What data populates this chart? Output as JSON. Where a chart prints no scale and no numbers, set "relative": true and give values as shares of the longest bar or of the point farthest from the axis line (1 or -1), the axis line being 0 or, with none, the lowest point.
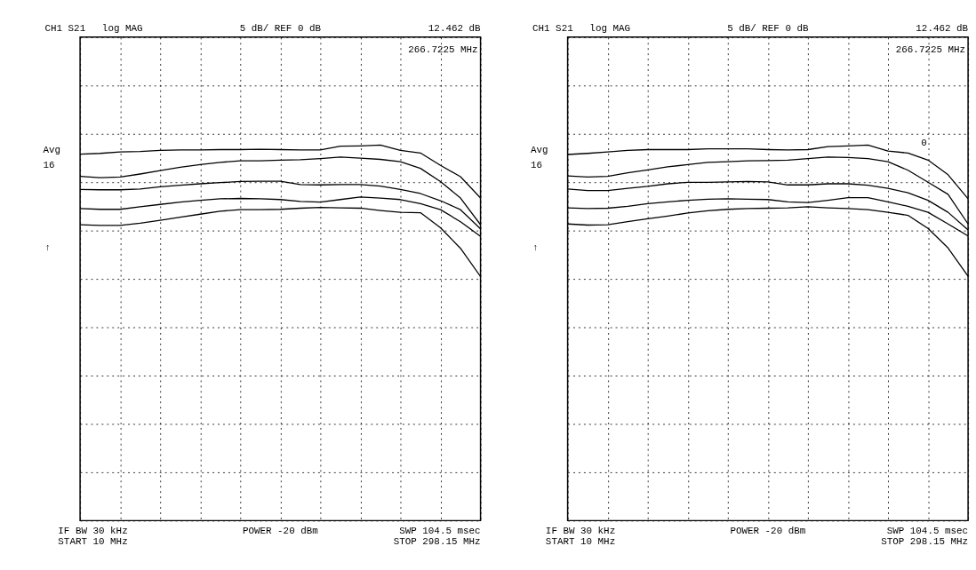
{
  "chart_data": [
    {
      "type": "line",
      "relative": true,
      "grid": true,
      "legend": false,
      "tick_labels": false,
      "line_style": "solid",
      "marker": "none",
      "categories": [
        null,
        null,
        null,
        null,
        null,
        null,
        null,
        null,
        null,
        null,
        null,
        null,
        null,
        null,
        null,
        null,
        null,
        null,
        null,
        null,
        null
      ],
      "series": [
        {
          "color": "#000000",
          "values": [
            0.976,
            0.978,
            0.982,
            0.983,
            0.986,
            0.987,
            0.987,
            0.988,
            0.988,
            0.989,
            0.988,
            0.987,
            0.987,
            0.997,
            0.998,
            1,
            0.986,
            0.979,
            0.946,
            0.916,
            0.859
          ]
        },
        {
          "color": "#000000",
          "values": [
            0.917,
            0.913,
            0.915,
            0.923,
            0.932,
            0.941,
            0.948,
            0.954,
            0.958,
            0.958,
            0.96,
            0.961,
            0.964,
            0.968,
            0.965,
            0.962,
            0.956,
            0.938,
            0.903,
            0.859,
            0.788
          ]
        },
        {
          "color": "#000000",
          "values": [
            0.882,
            0.881,
            0.881,
            0.883,
            0.889,
            0.893,
            0.897,
            0.9,
            0.903,
            0.904,
            0.904,
            0.895,
            0.894,
            0.895,
            0.895,
            0.891,
            0.882,
            0.871,
            0.852,
            0.828,
            0.777
          ]
        },
        {
          "color": "#000000",
          "values": [
            0.831,
            0.829,
            0.829,
            0.836,
            0.842,
            0.848,
            0.853,
            0.857,
            0.858,
            0.857,
            0.855,
            0.85,
            0.848,
            0.855,
            0.862,
            0.859,
            0.855,
            0.844,
            0.828,
            0.796,
            0.757
          ]
        },
        {
          "color": "#000000",
          "values": [
            0.788,
            0.786,
            0.786,
            0.792,
            0.8,
            0.808,
            0.816,
            0.824,
            0.828,
            0.828,
            0.829,
            0.832,
            0.834,
            0.833,
            0.832,
            0.826,
            0.821,
            0.82,
            0.78,
            0.725,
            0.65
          ]
        }
      ],
      "annotations": [
        "CH1 S21",
        "log MAG",
        "5 dB/ REF 0 dB",
        "12.462 dB",
        "266.7225 MHz",
        "Avg",
        "16",
        "↑",
        "IF BW 30 kHz",
        "START  10 MHz",
        "POWER -20 dBm",
        "SWP  104.5 msec",
        "STOP  298.15 MHz"
      ]
    },
    {
      "type": "line",
      "relative": true,
      "grid": true,
      "legend": false,
      "tick_labels": false,
      "line_style": "solid",
      "marker": "none",
      "categories": [
        null,
        null,
        null,
        null,
        null,
        null,
        null,
        null,
        null,
        null,
        null,
        null,
        null,
        null,
        null,
        null,
        null,
        null,
        null,
        null,
        null
      ],
      "series": [
        {
          "color": "#000000",
          "values": [
            0.975,
            0.978,
            0.982,
            0.986,
            0.988,
            0.988,
            0.988,
            0.99,
            0.99,
            0.99,
            0.988,
            0.987,
            0.988,
            0.996,
            0.998,
            1,
            0.984,
            0.979,
            0.96,
            0.921,
            0.857
          ]
        },
        {
          "color": "#000000",
          "values": [
            0.918,
            0.915,
            0.917,
            0.926,
            0.934,
            0.942,
            0.948,
            0.954,
            0.956,
            0.958,
            0.959,
            0.96,
            0.964,
            0.968,
            0.967,
            0.964,
            0.956,
            0.933,
            0.901,
            0.869,
            0.79
          ]
        },
        {
          "color": "#000000",
          "values": [
            0.883,
            0.879,
            0.879,
            0.885,
            0.89,
            0.897,
            0.901,
            0.901,
            0.902,
            0.903,
            0.902,
            0.894,
            0.894,
            0.897,
            0.897,
            0.893,
            0.885,
            0.873,
            0.853,
            0.821,
            0.774
          ]
        },
        {
          "color": "#000000",
          "values": [
            0.833,
            0.831,
            0.832,
            0.837,
            0.844,
            0.849,
            0.853,
            0.856,
            0.857,
            0.856,
            0.855,
            0.849,
            0.847,
            0.853,
            0.86,
            0.86,
            0.849,
            0.837,
            0.821,
            0.79,
            0.758
          ]
        },
        {
          "color": "#000000",
          "values": [
            0.79,
            0.787,
            0.788,
            0.796,
            0.804,
            0.811,
            0.819,
            0.825,
            0.829,
            0.831,
            0.832,
            0.833,
            0.836,
            0.833,
            0.831,
            0.828,
            0.821,
            0.813,
            0.778,
            0.726,
            0.651
          ]
        }
      ],
      "annotations": [
        "CH1 S21",
        "log MAG",
        "5 dB/ REF 0 dB",
        "12.462 dB",
        "266.7225 MHz",
        "Avg",
        "16",
        "↑",
        "IF BW 30 kHz",
        "START  10 MHz",
        "POWER -20 dBm",
        "SWP  104.5 msec",
        "STOP  298.15 MHz",
        "0"
      ]
    }
  ]
}
